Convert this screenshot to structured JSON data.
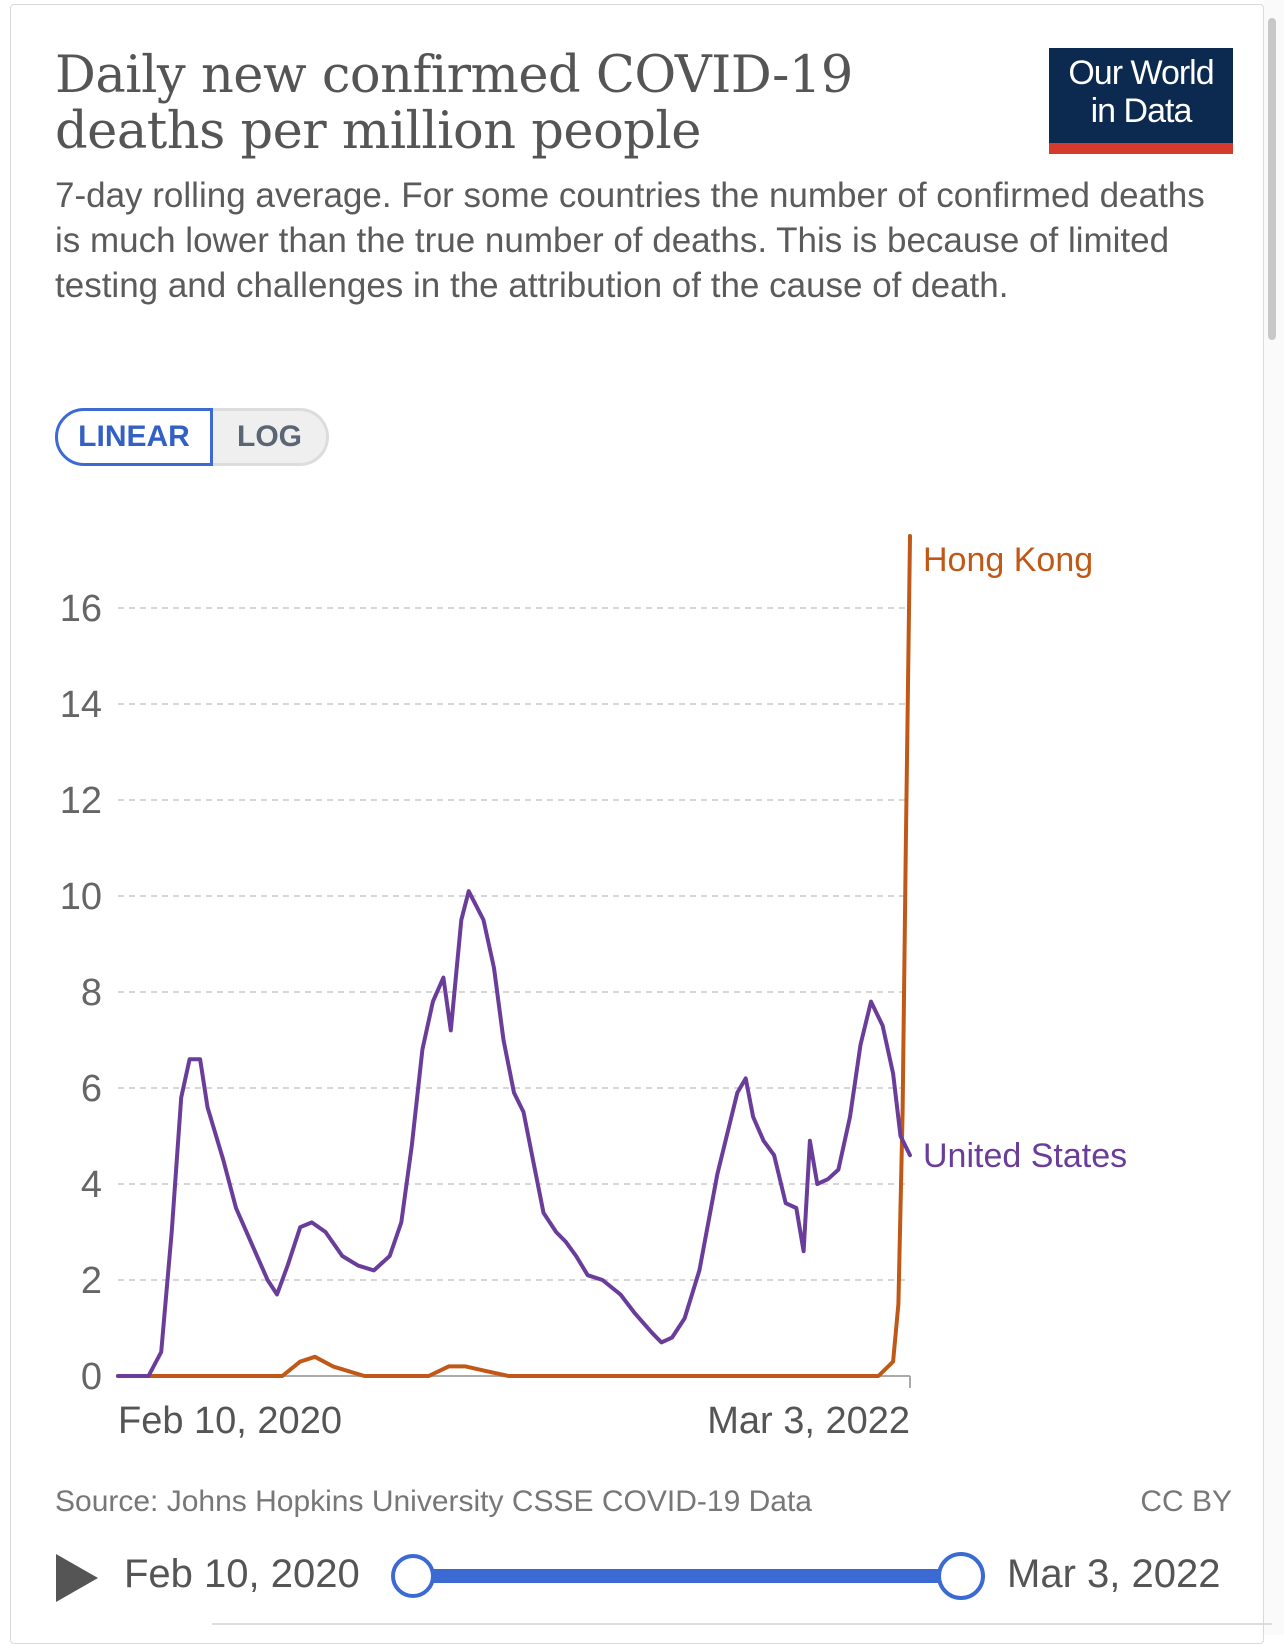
{
  "header": {
    "title": "Daily new confirmed COVID-19 deaths per million people",
    "subtitle": "7-day rolling average. For some countries the number of confirmed deaths is much lower than the true number of deaths. This is because of limited testing and challenges in the attribution of the cause of death.",
    "logo_line1": "Our World",
    "logo_line2": "in Data"
  },
  "scale_toggle": {
    "linear_label": "LINEAR",
    "log_label": "LOG",
    "selected": "LINEAR"
  },
  "chart_data": {
    "type": "line",
    "title": "Daily new confirmed COVID-19 deaths per million people",
    "xlabel": "",
    "ylabel": "",
    "x_range": [
      "2020-02-10",
      "2022-03-03"
    ],
    "x_tick_labels": [
      "Feb 10, 2020",
      "Mar 3, 2022"
    ],
    "ylim": [
      0,
      17.5
    ],
    "y_ticks": [
      0,
      2,
      4,
      6,
      8,
      10,
      12,
      14,
      16
    ],
    "grid": true,
    "legend": "end-of-line labels",
    "series": [
      {
        "name": "United States",
        "color": "#6a3d9a",
        "points": [
          [
            "2020-02-10",
            0
          ],
          [
            "2020-03-10",
            0
          ],
          [
            "2020-03-22",
            0.5
          ],
          [
            "2020-04-01",
            3.0
          ],
          [
            "2020-04-10",
            5.8
          ],
          [
            "2020-04-18",
            6.6
          ],
          [
            "2020-04-28",
            6.6
          ],
          [
            "2020-05-05",
            5.6
          ],
          [
            "2020-05-20",
            4.5
          ],
          [
            "2020-06-01",
            3.5
          ],
          [
            "2020-06-15",
            2.8
          ],
          [
            "2020-07-01",
            2.0
          ],
          [
            "2020-07-10",
            1.7
          ],
          [
            "2020-07-20",
            2.3
          ],
          [
            "2020-08-01",
            3.1
          ],
          [
            "2020-08-12",
            3.2
          ],
          [
            "2020-08-25",
            3.0
          ],
          [
            "2020-09-10",
            2.5
          ],
          [
            "2020-09-25",
            2.3
          ],
          [
            "2020-10-10",
            2.2
          ],
          [
            "2020-10-25",
            2.5
          ],
          [
            "2020-11-05",
            3.2
          ],
          [
            "2020-11-15",
            4.8
          ],
          [
            "2020-11-25",
            6.8
          ],
          [
            "2020-12-05",
            7.8
          ],
          [
            "2020-12-15",
            8.3
          ],
          [
            "2020-12-22",
            7.2
          ],
          [
            "2021-01-01",
            9.5
          ],
          [
            "2021-01-08",
            10.1
          ],
          [
            "2021-01-15",
            9.8
          ],
          [
            "2021-01-22",
            9.5
          ],
          [
            "2021-02-01",
            8.5
          ],
          [
            "2021-02-10",
            7.0
          ],
          [
            "2021-02-20",
            5.9
          ],
          [
            "2021-03-01",
            5.5
          ],
          [
            "2021-03-10",
            4.5
          ],
          [
            "2021-03-20",
            3.4
          ],
          [
            "2021-04-01",
            3.0
          ],
          [
            "2021-04-10",
            2.8
          ],
          [
            "2021-04-20",
            2.5
          ],
          [
            "2021-05-01",
            2.1
          ],
          [
            "2021-05-15",
            2.0
          ],
          [
            "2021-06-01",
            1.7
          ],
          [
            "2021-06-15",
            1.3
          ],
          [
            "2021-07-01",
            0.9
          ],
          [
            "2021-07-10",
            0.7
          ],
          [
            "2021-07-20",
            0.8
          ],
          [
            "2021-08-01",
            1.2
          ],
          [
            "2021-08-15",
            2.2
          ],
          [
            "2021-09-01",
            4.2
          ],
          [
            "2021-09-10",
            5.0
          ],
          [
            "2021-09-20",
            5.9
          ],
          [
            "2021-09-28",
            6.2
          ],
          [
            "2021-10-05",
            5.4
          ],
          [
            "2021-10-15",
            4.9
          ],
          [
            "2021-10-25",
            4.6
          ],
          [
            "2021-11-05",
            3.6
          ],
          [
            "2021-11-15",
            3.5
          ],
          [
            "2021-11-22",
            2.6
          ],
          [
            "2021-11-28",
            4.9
          ],
          [
            "2021-12-05",
            4.0
          ],
          [
            "2021-12-15",
            4.1
          ],
          [
            "2021-12-25",
            4.3
          ],
          [
            "2022-01-05",
            5.4
          ],
          [
            "2022-01-15",
            6.9
          ],
          [
            "2022-01-25",
            7.8
          ],
          [
            "2022-02-05",
            7.3
          ],
          [
            "2022-02-15",
            6.3
          ],
          [
            "2022-02-22",
            5.0
          ],
          [
            "2022-03-03",
            4.6
          ]
        ]
      },
      {
        "name": "Hong Kong",
        "color": "#c05917",
        "points": [
          [
            "2020-02-10",
            0
          ],
          [
            "2020-07-15",
            0
          ],
          [
            "2020-08-01",
            0.3
          ],
          [
            "2020-08-15",
            0.4
          ],
          [
            "2020-09-01",
            0.2
          ],
          [
            "2020-10-01",
            0
          ],
          [
            "2020-12-01",
            0
          ],
          [
            "2020-12-20",
            0.2
          ],
          [
            "2021-01-05",
            0.2
          ],
          [
            "2021-01-25",
            0.1
          ],
          [
            "2021-02-15",
            0
          ],
          [
            "2022-02-01",
            0
          ],
          [
            "2022-02-15",
            0.3
          ],
          [
            "2022-02-20",
            1.5
          ],
          [
            "2022-02-24",
            5.5
          ],
          [
            "2022-02-27",
            11.0
          ],
          [
            "2022-03-03",
            17.5
          ]
        ]
      }
    ]
  },
  "labels": {
    "hong_kong": "Hong Kong",
    "united_states": "United States"
  },
  "footer": {
    "source": "Source: Johns Hopkins University CSSE COVID-19 Data",
    "license": "CC BY"
  },
  "timeline": {
    "start": "Feb 10, 2020",
    "end": "Mar 3, 2022"
  }
}
